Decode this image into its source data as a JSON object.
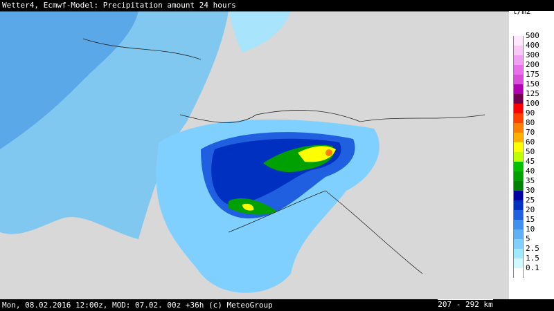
{
  "header": {
    "title": "Wetter4, Ecmwf-Model: Precipitation amount 24 hours"
  },
  "legend": {
    "unit": "l/m2",
    "items": [
      {
        "label": "500",
        "color": "#fde8fd"
      },
      {
        "label": "400",
        "color": "#f8c8f8"
      },
      {
        "label": "300",
        "color": "#f0a0f0"
      },
      {
        "label": "200",
        "color": "#e870e8"
      },
      {
        "label": "175",
        "color": "#d850d8"
      },
      {
        "label": "150",
        "color": "#b000b0"
      },
      {
        "label": "125",
        "color": "#700050"
      },
      {
        "label": "100",
        "color": "#ff0000"
      },
      {
        "label": "90",
        "color": "#ff4000"
      },
      {
        "label": "80",
        "color": "#ff8000"
      },
      {
        "label": "70",
        "color": "#ffb000"
      },
      {
        "label": "60",
        "color": "#ffff00"
      },
      {
        "label": "50",
        "color": "#c0ff00"
      },
      {
        "label": "45",
        "color": "#00c000"
      },
      {
        "label": "40",
        "color": "#00a000"
      },
      {
        "label": "35",
        "color": "#008000"
      },
      {
        "label": "30",
        "color": "#0000a0"
      },
      {
        "label": "25",
        "color": "#0030c0"
      },
      {
        "label": "20",
        "color": "#2060e0"
      },
      {
        "label": "15",
        "color": "#4090f0"
      },
      {
        "label": "10",
        "color": "#60b0f8"
      },
      {
        "label": "5",
        "color": "#80d0ff"
      },
      {
        "label": "2.5",
        "color": "#a0e8ff"
      },
      {
        "label": "1.5",
        "color": "#d0f8ff"
      },
      {
        "label": "0.1",
        "color": "#ffffff"
      }
    ]
  },
  "footer": {
    "text": "Mon, 08.02.2016 12:00z, MOD: 07.02. 00z +36h (c) MeteoGroup",
    "scale": "207 - 292 km"
  }
}
